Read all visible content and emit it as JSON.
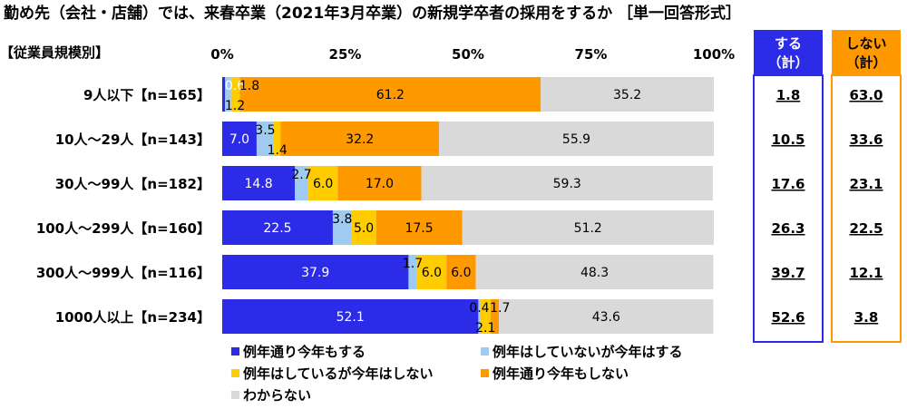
{
  "title": "勤め先（会社・店舗）では、来春卒業（2021年3月卒業）の新規学卒者の採用をするか ［単一回答形式］",
  "axis_group_label": "【従業員規模別】",
  "totals_headers": {
    "yes": [
      "する",
      "（計）"
    ],
    "no": [
      "しない",
      "（計）"
    ]
  },
  "colors": {
    "series": [
      "#2b2be8",
      "#9fcbf0",
      "#ffcc00",
      "#ff9900",
      "#d9d9d9"
    ],
    "yes_box": "#2b2be8",
    "no_box": "#ff9900",
    "text_white": "#ffffff",
    "text_black": "#000000"
  },
  "chart_data": {
    "type": "bar",
    "orientation": "horizontal",
    "stacked": true,
    "xlim": [
      0,
      100
    ],
    "x_ticks": [
      "0%",
      "25%",
      "50%",
      "75%",
      "100%"
    ],
    "categories": [
      "9人以下【n=165】",
      "10人～29人【n=143】",
      "30人～99人【n=182】",
      "100人～299人【n=160】",
      "300人～999人【n=116】",
      "1000人以上【n=234】"
    ],
    "series": [
      {
        "name": "例年通り今年もする",
        "values": [
          0.6,
          7.0,
          14.8,
          22.5,
          37.9,
          52.1
        ]
      },
      {
        "name": "例年はしていないが今年はする",
        "values": [
          1.2,
          3.5,
          2.7,
          3.8,
          1.7,
          0.4
        ]
      },
      {
        "name": "例年はしているが今年はしない",
        "values": [
          1.8,
          1.4,
          6.0,
          5.0,
          6.0,
          2.1
        ]
      },
      {
        "name": "例年通り今年もしない",
        "values": [
          61.2,
          32.2,
          17.0,
          17.5,
          6.0,
          1.7
        ]
      },
      {
        "name": "わからない",
        "values": [
          35.2,
          55.9,
          59.3,
          51.2,
          48.3,
          43.6
        ]
      }
    ],
    "totals_yes": [
      "1.8",
      "10.5",
      "17.6",
      "26.3",
      "39.7",
      "52.6"
    ],
    "totals_no": [
      "63.0",
      "33.6",
      "23.1",
      "22.5",
      "12.1",
      "3.8"
    ],
    "legend": [
      "例年通り今年もする",
      "例年はしていないが今年はする",
      "例年はしているが今年はしない",
      "例年通り今年もしない",
      "わからない"
    ]
  }
}
